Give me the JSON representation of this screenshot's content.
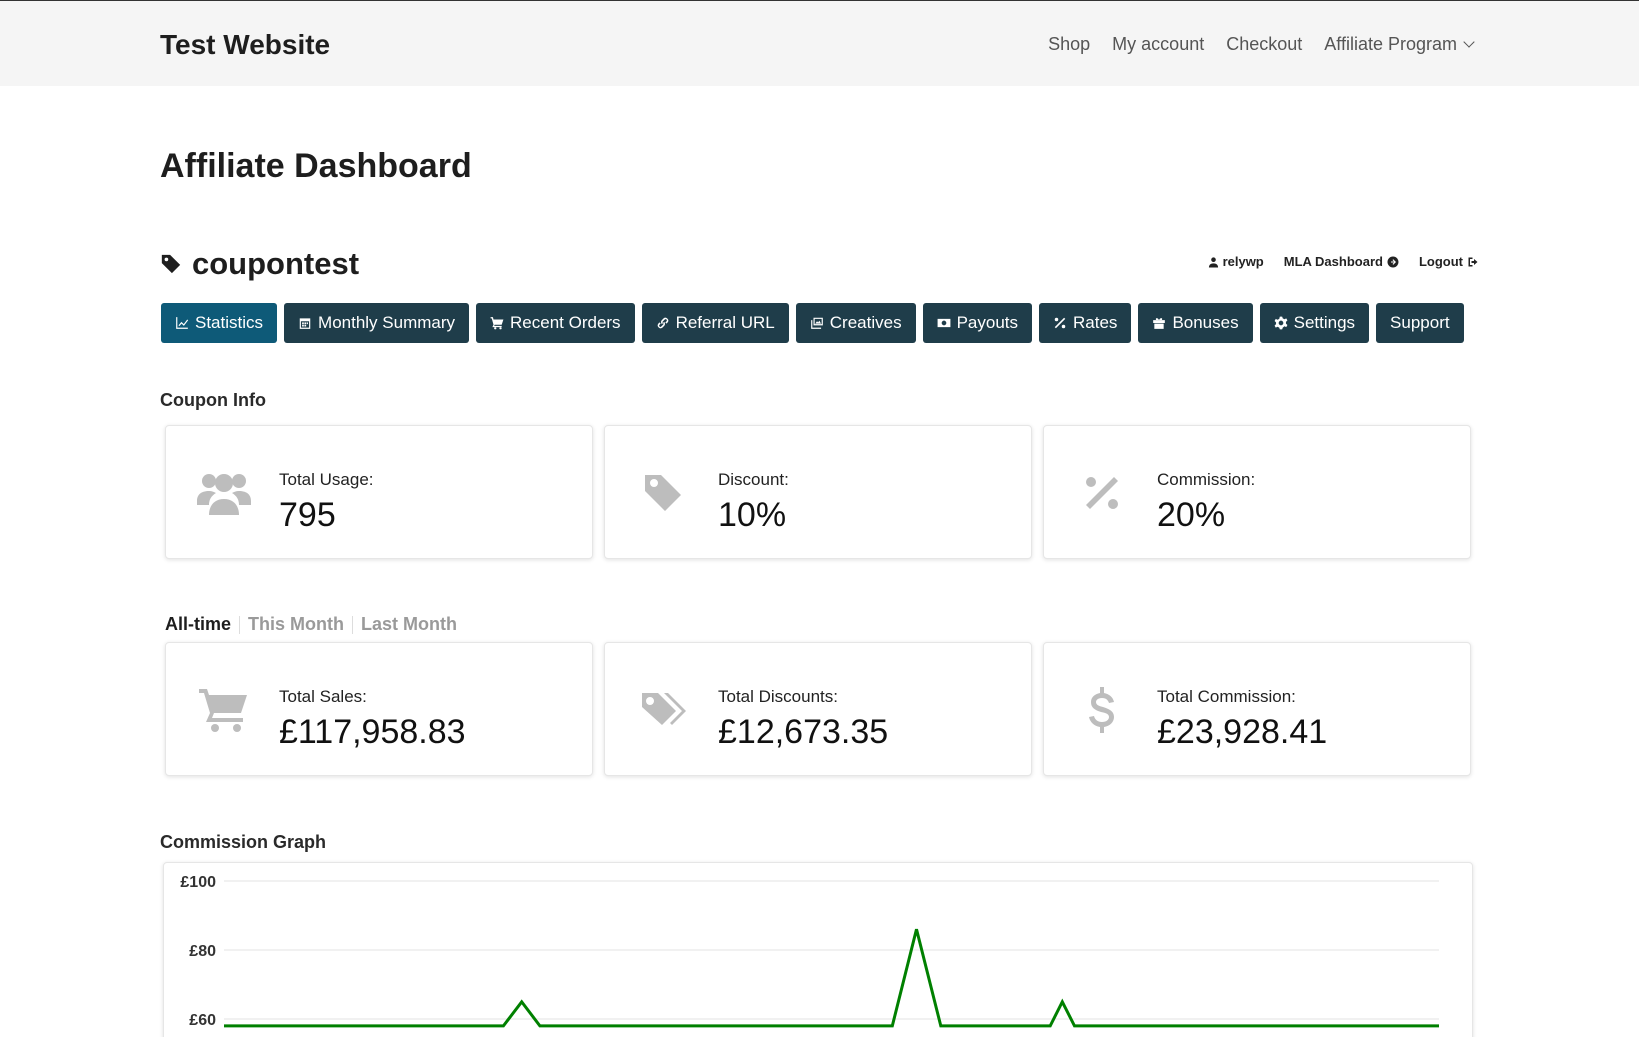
{
  "site": {
    "title": "Test Website"
  },
  "nav": {
    "items": [
      "Shop",
      "My account",
      "Checkout",
      "Affiliate Program"
    ]
  },
  "page": {
    "title": "Affiliate Dashboard"
  },
  "coupon": {
    "name": "coupontest",
    "icon": "tag-icon"
  },
  "user_links": {
    "username": "relywp",
    "mla": "MLA Dashboard",
    "logout": "Logout"
  },
  "tabs": [
    {
      "label": "Statistics",
      "icon": "chart-line-icon",
      "active": true
    },
    {
      "label": "Monthly Summary",
      "icon": "calendar-icon",
      "active": false
    },
    {
      "label": "Recent Orders",
      "icon": "cart-icon",
      "active": false
    },
    {
      "label": "Referral URL",
      "icon": "link-icon",
      "active": false
    },
    {
      "label": "Creatives",
      "icon": "images-icon",
      "active": false
    },
    {
      "label": "Payouts",
      "icon": "money-icon",
      "active": false
    },
    {
      "label": "Rates",
      "icon": "percent-icon",
      "active": false
    },
    {
      "label": "Bonuses",
      "icon": "gift-icon",
      "active": false
    },
    {
      "label": "Settings",
      "icon": "cog-icon",
      "active": false
    },
    {
      "label": "Support",
      "icon": "",
      "active": false
    }
  ],
  "coupon_info": {
    "heading": "Coupon Info",
    "cards": [
      {
        "label": "Total Usage:",
        "value": "795",
        "icon": "users-icon"
      },
      {
        "label": "Discount:",
        "value": "10%",
        "icon": "tag-icon"
      },
      {
        "label": "Commission:",
        "value": "20%",
        "icon": "percent-icon"
      }
    ]
  },
  "period_filter": {
    "options": [
      "All-time",
      "This Month",
      "Last Month"
    ],
    "selected": "All-time"
  },
  "totals": {
    "cards": [
      {
        "label": "Total Sales:",
        "value": "£117,958.83",
        "icon": "cart-icon"
      },
      {
        "label": "Total Discounts:",
        "value": "£12,673.35",
        "icon": "tags-icon"
      },
      {
        "label": "Total Commission:",
        "value": "£23,928.41",
        "icon": "dollar-icon"
      }
    ]
  },
  "commission_graph": {
    "heading": "Commission Graph"
  },
  "colors": {
    "tab_bg": "#1f3d4a",
    "tab_active": "#0e5a78",
    "line": "#008000",
    "icon_grey": "#bdbdbd"
  },
  "chart_data": {
    "type": "line",
    "title": "",
    "ylabel": "",
    "y_tick_labels": [
      "£100",
      "£80",
      "£60"
    ],
    "ylim": [
      60,
      100
    ],
    "series": [
      {
        "x": [
          0.0,
          0.23,
          0.245,
          0.26,
          0.55,
          0.57,
          0.59,
          0.68,
          0.69,
          0.7,
          1.0
        ],
        "values": [
          58,
          58,
          65,
          58,
          58,
          86,
          58,
          58,
          65,
          58,
          58
        ]
      }
    ]
  }
}
